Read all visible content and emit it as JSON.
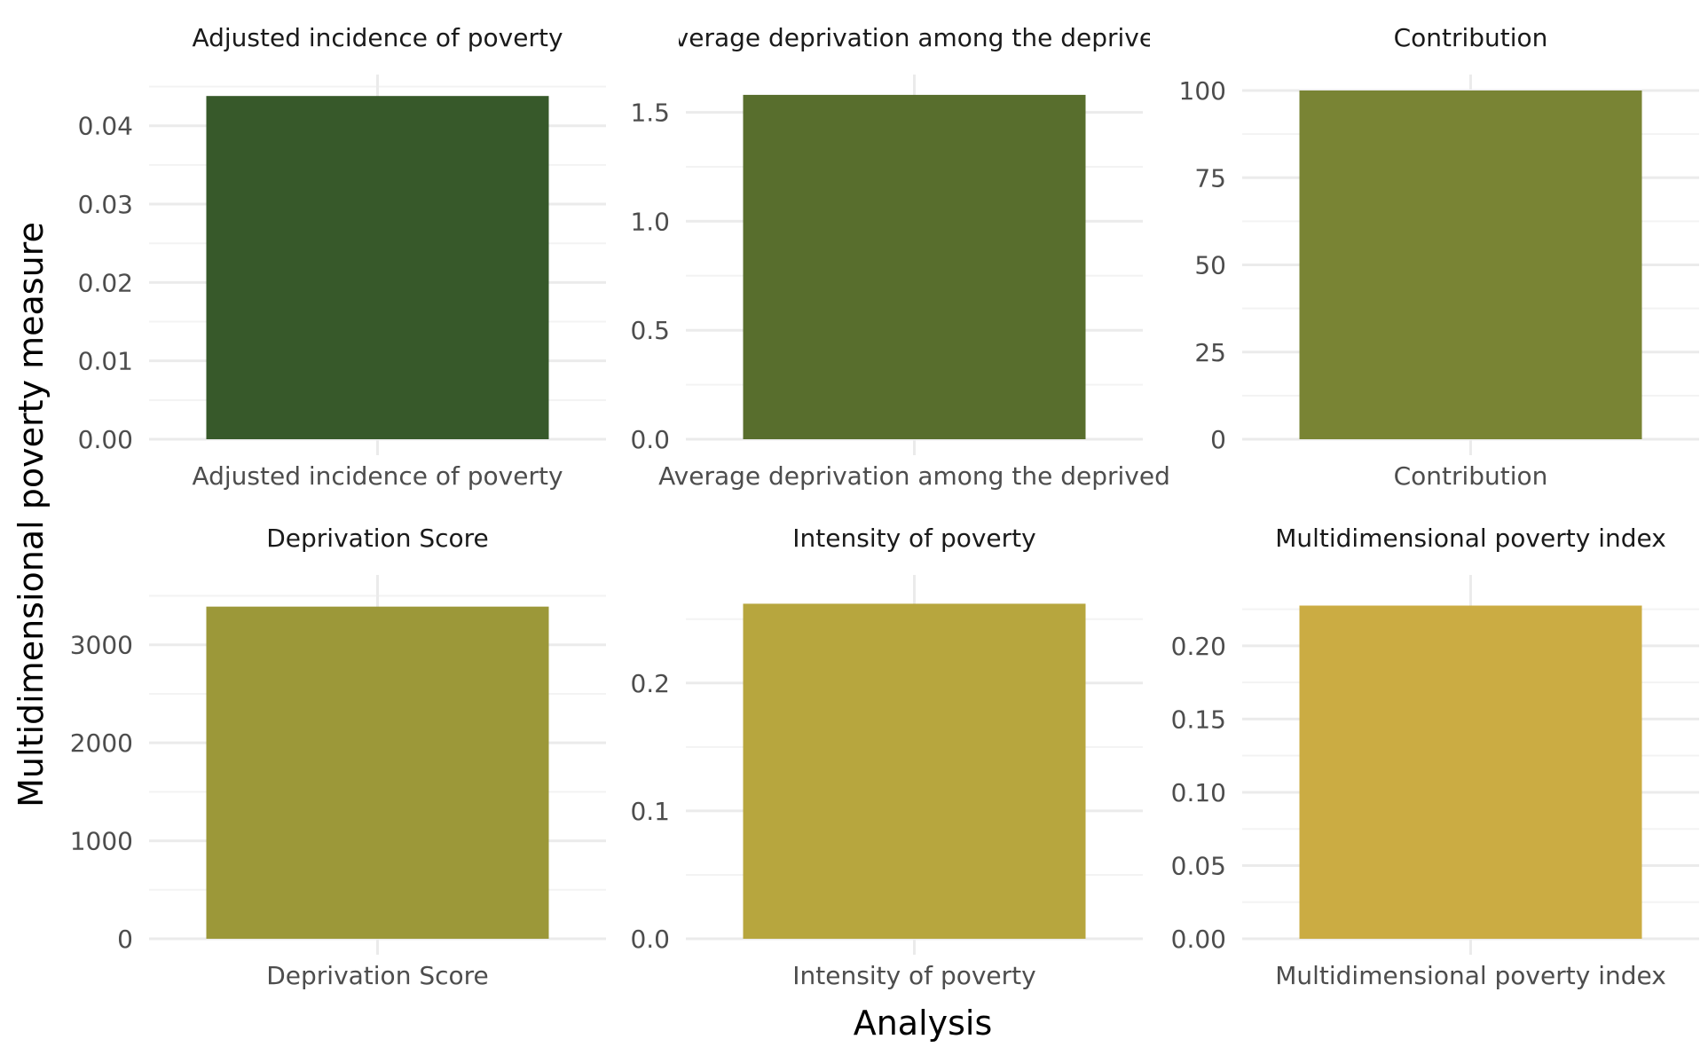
{
  "chart_data": {
    "type": "bar",
    "xlabel": "Analysis",
    "ylabel": "Multidimensional poverty measure",
    "panels": [
      {
        "title": "Adjusted incidence of poverty",
        "category": "Adjusted incidence of poverty",
        "value": 0.0438,
        "ylim": [
          0,
          0.0445
        ],
        "yticks": [
          0,
          0.01,
          0.02,
          0.03,
          0.04
        ],
        "ytick_labels": [
          "0.00",
          "0.01",
          "0.02",
          "0.03",
          "0.04"
        ],
        "color": "#37592a"
      },
      {
        "title": "Average deprivation among the deprived",
        "category": "Average deprivation among the deprived",
        "value": 1.58,
        "ylim": [
          0,
          1.6
        ],
        "yticks": [
          0,
          0.5,
          1.0,
          1.5
        ],
        "ytick_labels": [
          "0.0",
          "0.5",
          "1.0",
          "1.5"
        ],
        "color": "#586e2d"
      },
      {
        "title": "Contribution",
        "category": "Contribution",
        "value": 100,
        "ylim": [
          0,
          100
        ],
        "yticks": [
          0,
          25,
          50,
          75,
          100
        ],
        "ytick_labels": [
          "0",
          "25",
          "50",
          "75",
          "100"
        ],
        "color": "#798434"
      },
      {
        "title": "Deprivation Score",
        "category": "Deprivation Score",
        "value": 3390,
        "ylim": [
          0,
          3550
        ],
        "yticks": [
          0,
          1000,
          2000,
          3000
        ],
        "ytick_labels": [
          "0",
          "1000",
          "2000",
          "3000"
        ],
        "color": "#9c9839"
      },
      {
        "title": "Intensity of poverty",
        "category": "Intensity of poverty",
        "value": 0.262,
        "ylim": [
          0,
          0.272
        ],
        "yticks": [
          0,
          0.1,
          0.2
        ],
        "ytick_labels": [
          "0.0",
          "0.1",
          "0.2"
        ],
        "color": "#b7a63e"
      },
      {
        "title": "Multidimensional poverty index",
        "category": "Multidimensional poverty index",
        "value": 0.2275,
        "ylim": [
          0,
          0.2375
        ],
        "yticks": [
          0,
          0.05,
          0.1,
          0.15,
          0.2
        ],
        "ytick_labels": [
          "0.00",
          "0.05",
          "0.10",
          "0.15",
          "0.20"
        ],
        "color": "#cbac43"
      }
    ]
  }
}
